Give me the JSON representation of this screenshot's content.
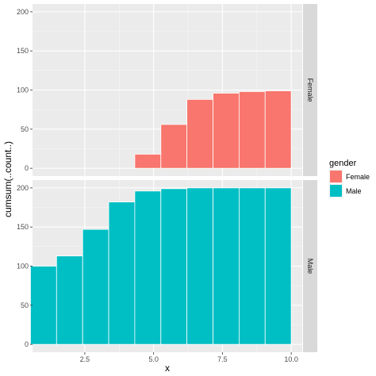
{
  "chart_data": {
    "type": "bar",
    "xlabel": "x",
    "ylabel": "cumsum(..count..)",
    "xlim": [
      0.6,
      10.4
    ],
    "ylim": [
      -10,
      210
    ],
    "x_ticks": [
      2.5,
      5.0,
      7.5,
      10.0
    ],
    "x_tick_labels": [
      "2.5",
      "5.0",
      "7.5",
      "10.0"
    ],
    "y_ticks": [
      0,
      50,
      100,
      150,
      200
    ],
    "y_tick_labels": [
      "0",
      "50",
      "100",
      "150",
      "200"
    ],
    "bin_width": 0.947,
    "grid": true,
    "legend": {
      "title": "gender",
      "position": "right",
      "entries": [
        {
          "label": "Female",
          "color": "#F8766D"
        },
        {
          "label": "Male",
          "color": "#00BFC4"
        }
      ]
    },
    "panels": [
      {
        "strip": "Female",
        "color": "#F8766D",
        "bars": [
          {
            "x": 1.0,
            "y": 0
          },
          {
            "x": 1.947,
            "y": 0
          },
          {
            "x": 2.895,
            "y": 0
          },
          {
            "x": 3.842,
            "y": 0
          },
          {
            "x": 4.789,
            "y": 18
          },
          {
            "x": 5.737,
            "y": 56
          },
          {
            "x": 6.684,
            "y": 88
          },
          {
            "x": 7.632,
            "y": 96
          },
          {
            "x": 8.579,
            "y": 98
          },
          {
            "x": 9.526,
            "y": 99
          }
        ]
      },
      {
        "strip": "Male",
        "color": "#00BFC4",
        "bars": [
          {
            "x": 1.0,
            "y": 100
          },
          {
            "x": 1.947,
            "y": 113
          },
          {
            "x": 2.895,
            "y": 147
          },
          {
            "x": 3.842,
            "y": 182
          },
          {
            "x": 4.789,
            "y": 196
          },
          {
            "x": 5.737,
            "y": 199
          },
          {
            "x": 6.684,
            "y": 200
          },
          {
            "x": 7.632,
            "y": 200
          },
          {
            "x": 8.579,
            "y": 200
          },
          {
            "x": 9.526,
            "y": 200
          }
        ]
      }
    ]
  }
}
